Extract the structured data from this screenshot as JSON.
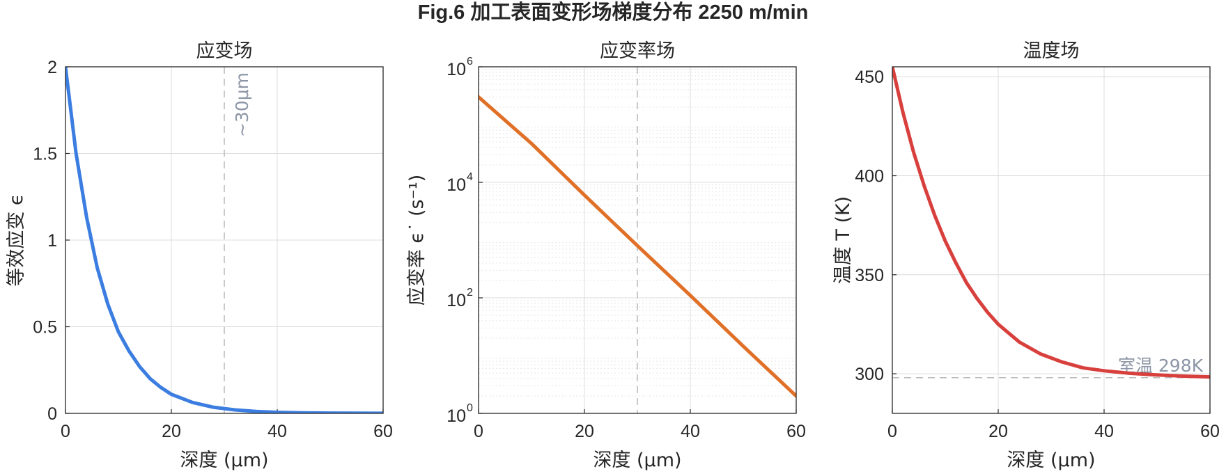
{
  "figure": {
    "title": "Fig.6  加工表面变形场梯度分布   2250 m/min"
  },
  "chart_data": [
    {
      "type": "line",
      "title": "应变场",
      "xlabel": "深度 (μm)",
      "ylabel": "等效应变 ϵ",
      "xlim": [
        0,
        60
      ],
      "ylim": [
        0,
        2
      ],
      "xticks": [
        0,
        20,
        40,
        60
      ],
      "yticks": [
        0,
        0.5,
        1,
        1.5,
        2
      ],
      "ytick_labels": [
        "0",
        "0.5",
        "1",
        "1.5",
        "2"
      ],
      "grid": true,
      "series": [
        {
          "color": "#3b7de0",
          "x": [
            0,
            2,
            4,
            6,
            8,
            10,
            12,
            14,
            16,
            18,
            20,
            24,
            28,
            32,
            36,
            40,
            45,
            50,
            55,
            60
          ],
          "y": [
            2.0,
            1.5,
            1.13,
            0.84,
            0.63,
            0.47,
            0.36,
            0.27,
            0.2,
            0.15,
            0.11,
            0.063,
            0.035,
            0.02,
            0.011,
            0.006,
            0.003,
            0.0015,
            0.0008,
            0.0004
          ]
        }
      ],
      "vline": {
        "x": 30,
        "label": "~30μm"
      }
    },
    {
      "type": "line",
      "title": "应变率场",
      "xlabel": "深度 (μm)",
      "ylabel": "应变率 ϵ˙ (s⁻¹)",
      "xlim": [
        0,
        60
      ],
      "ylim": [
        1,
        1000000
      ],
      "yscale": "log",
      "xticks": [
        0,
        20,
        40,
        60
      ],
      "ytick_exponents": [
        0,
        2,
        4,
        6
      ],
      "ytick_base": "10",
      "grid": true,
      "minor_grid": true,
      "series": [
        {
          "color": "#e07027",
          "x": [
            0,
            10,
            20,
            30,
            40,
            50,
            60
          ],
          "y": [
            300000,
            47000,
            6000,
            800,
            110,
            14.5,
            2
          ]
        }
      ],
      "vline": {
        "x": 30
      }
    },
    {
      "type": "line",
      "title": "温度场",
      "xlabel": "深度 (μm)",
      "ylabel": "温度 T (K)",
      "xlim": [
        0,
        60
      ],
      "ylim": [
        280,
        455
      ],
      "xticks": [
        0,
        20,
        40,
        60
      ],
      "yticks": [
        300,
        350,
        400,
        450
      ],
      "grid": true,
      "series": [
        {
          "color": "#d8403d",
          "x": [
            0,
            2,
            4,
            6,
            8,
            10,
            12,
            14,
            16,
            18,
            20,
            24,
            28,
            32,
            36,
            40,
            45,
            50,
            55,
            60
          ],
          "y": [
            455,
            432,
            412,
            395,
            380,
            367,
            356,
            346,
            338,
            331,
            325,
            316,
            310,
            306,
            303,
            301.5,
            300.2,
            299.4,
            298.8,
            298.4
          ]
        }
      ],
      "hline": {
        "y": 298,
        "label": "室温 298K"
      }
    }
  ]
}
